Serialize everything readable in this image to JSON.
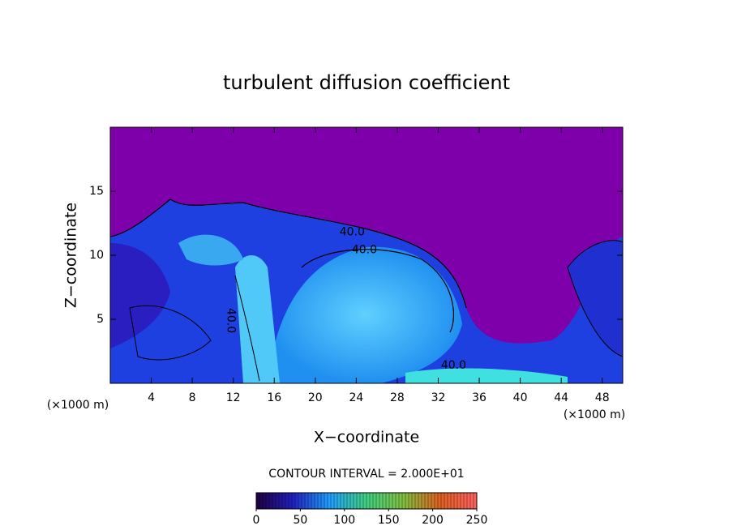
{
  "chart_data": {
    "type": "contour",
    "title": "turbulent diffusion coefficient",
    "x_label": "X−coordinate",
    "y_label": "Z−coordinate",
    "x_unit": "(×1000 m)",
    "y_unit": "(×1000 m)",
    "xlim": [
      0,
      50
    ],
    "ylim": [
      0,
      20
    ],
    "xticks": [
      4,
      8,
      12,
      16,
      20,
      24,
      28,
      32,
      36,
      40,
      44,
      48
    ],
    "yticks": [
      5,
      10,
      15
    ],
    "background_color": "#7e00aa",
    "contour_labels": [
      {
        "value": 40,
        "label": "40.0",
        "x": 23.6,
        "y": 11.8
      },
      {
        "value": 40,
        "label": "40.0",
        "x": 24.8,
        "y": 10.4
      },
      {
        "value": 40,
        "label": "40.0",
        "x": 11.75,
        "y": 4.9
      },
      {
        "value": 40,
        "label": "40.0",
        "x": 33.5,
        "y": 1.4
      }
    ],
    "colorbar": {
      "title": "CONTOUR INTERVAL = 2.000E+01",
      "lim": [
        0,
        250
      ],
      "ticks": [
        0,
        50,
        100,
        150,
        200,
        250
      ],
      "colors": [
        "#200040",
        "#2020c0",
        "#20a0ff",
        "#40d080",
        "#80c040",
        "#e06020",
        "#ff6060"
      ]
    }
  }
}
